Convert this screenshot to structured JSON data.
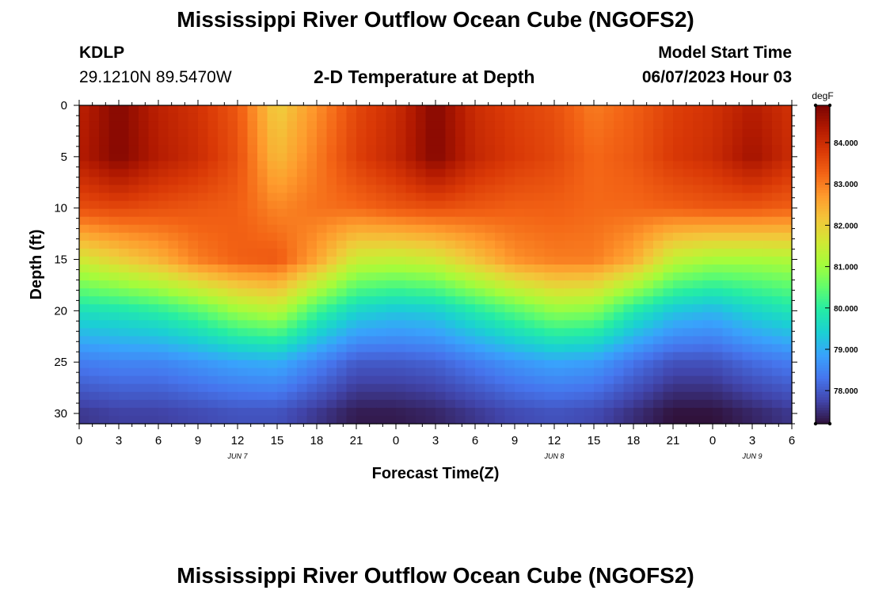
{
  "page": {
    "title_top": "Mississippi River Outflow Ocean Cube (NGOFS2)",
    "title_bottom": "Mississippi River Outflow Ocean Cube (NGOFS2)",
    "station": "KDLP",
    "location": "29.1210N  89.5470W",
    "subtitle": "2-D Temperature at Depth",
    "model_start_label": "Model Start Time",
    "model_start_value": "06/07/2023 Hour 03"
  },
  "chart_data": {
    "type": "heatmap",
    "title": "2-D Temperature at Depth",
    "xlabel": "Forecast Time(Z)",
    "ylabel": "Depth (ft)",
    "x_hours_range": [
      0,
      54
    ],
    "x_tick_labels": [
      "0",
      "3",
      "6",
      "9",
      "12",
      "15",
      "18",
      "21",
      "0",
      "3",
      "6",
      "9",
      "12",
      "15",
      "18",
      "21",
      "0",
      "3",
      "6"
    ],
    "date_labels": [
      {
        "label": "JUN 7",
        "hour": 12
      },
      {
        "label": "JUN 8",
        "hour": 36
      },
      {
        "label": "JUN 9",
        "hour": 51
      }
    ],
    "ylim": [
      0,
      31
    ],
    "y_ticks": [
      0,
      5,
      10,
      15,
      20,
      25,
      30
    ],
    "y_reversed": true,
    "colorbar": {
      "unit": "degF",
      "range": [
        77.2,
        84.9
      ],
      "tick_values": [
        78.0,
        79.0,
        80.0,
        81.0,
        82.0,
        83.0,
        84.0
      ],
      "tick_labels": [
        "78.000",
        "79.000",
        "80.000",
        "81.000",
        "82.000",
        "83.000",
        "84.000"
      ],
      "colormap": [
        "#30123b",
        "#4145ab",
        "#4675ed",
        "#39a2fc",
        "#1bcfd4",
        "#24eca6",
        "#61fc6c",
        "#a4fc3b",
        "#d1e834",
        "#f3c63a",
        "#fe9b2d",
        "#f36315",
        "#d93806",
        "#b11901",
        "#7a0402"
      ]
    },
    "time_steps": [
      0,
      3,
      6,
      9,
      12,
      15,
      18,
      21,
      24,
      27,
      30,
      33,
      36,
      39,
      42,
      45,
      48,
      51,
      54
    ],
    "depth_levels": [
      0,
      5,
      10,
      15,
      20,
      25,
      30
    ],
    "values": [
      [
        84.2,
        84.8,
        84.2,
        83.9,
        83.4,
        82.0,
        82.8,
        83.6,
        84.0,
        84.8,
        84.0,
        83.7,
        83.5,
        83.0,
        83.3,
        83.7,
        83.9,
        84.3,
        83.9
      ],
      [
        84.3,
        84.8,
        84.3,
        84.0,
        83.5,
        82.3,
        83.0,
        83.7,
        84.1,
        84.8,
        84.1,
        83.8,
        83.6,
        83.2,
        83.4,
        83.8,
        84.0,
        84.5,
        84.0
      ],
      [
        83.5,
        83.6,
        83.5,
        83.4,
        83.3,
        82.9,
        83.1,
        83.2,
        83.4,
        83.5,
        83.4,
        83.3,
        83.3,
        83.2,
        83.2,
        83.3,
        83.4,
        83.4,
        83.3
      ],
      [
        81.6,
        82.0,
        82.4,
        83.0,
        83.3,
        83.4,
        82.6,
        81.5,
        81.4,
        81.6,
        82.2,
        82.8,
        83.0,
        83.0,
        82.5,
        81.4,
        81.1,
        81.1,
        81.2
      ],
      [
        79.7,
        79.8,
        80.0,
        80.4,
        81.0,
        81.3,
        80.2,
        79.5,
        79.3,
        79.4,
        79.9,
        80.4,
        80.9,
        80.8,
        79.9,
        79.3,
        79.1,
        79.5,
        79.8
      ],
      [
        78.4,
        78.5,
        78.5,
        78.7,
        78.9,
        79.0,
        78.5,
        78.0,
        78.0,
        78.1,
        78.4,
        78.7,
        78.9,
        78.8,
        78.3,
        77.9,
        77.9,
        78.2,
        78.4
      ],
      [
        77.6,
        77.7,
        77.7,
        77.8,
        77.9,
        77.9,
        77.6,
        77.3,
        77.3,
        77.4,
        77.6,
        77.8,
        77.9,
        77.8,
        77.5,
        77.2,
        77.2,
        77.4,
        77.6
      ]
    ]
  }
}
